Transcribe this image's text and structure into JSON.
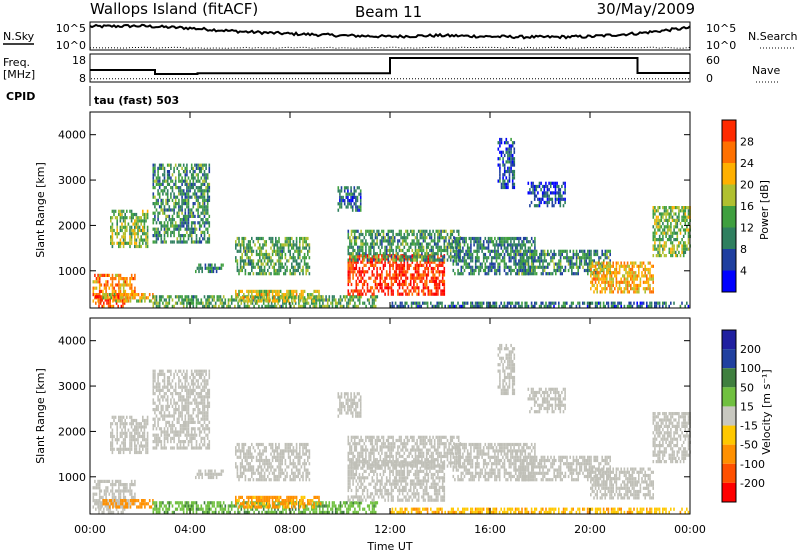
{
  "header": {
    "title": "Wallops Island (fitACF)",
    "beam": "Beam 11",
    "date": "30/May/2009"
  },
  "panel_labels": {
    "nsky": "N.Sky",
    "nsearch": "N.Search",
    "freq": "Freq.",
    "freq_unit": "[MHz]",
    "nave": "Nave",
    "cpid": "CPID",
    "program": "tau (fast) 503"
  },
  "colors": {
    "power_scale": [
      "#0000ff",
      "#1f3f9f",
      "#2f7f5f",
      "#3f9f3f",
      "#b0c030",
      "#ffb000",
      "#ff7000",
      "#ff2a00",
      "#ff0000"
    ],
    "velocity_scale": [
      "#2020a0",
      "#20409f",
      "#3f7f3f",
      "#70c040",
      "#c8c8c0",
      "#ffc800",
      "#ff9000",
      "#ff5000",
      "#ff0000"
    ],
    "ground_scatter": "#c0c0b8"
  },
  "chart_data": [
    {
      "type": "line",
      "name": "noise-panel",
      "left_axis": {
        "label": "N.Sky",
        "ticks": [
          "10^5",
          "10^0"
        ]
      },
      "right_axis": {
        "label": "N.Search",
        "ticks": [
          "10^5",
          "10^0"
        ]
      },
      "x": [
        0,
        2,
        4,
        6,
        8,
        10,
        12,
        14,
        16,
        18,
        20,
        22,
        24
      ],
      "nsky_log": [
        4.2,
        4.3,
        3.9,
        3.3,
        2.9,
        2.6,
        2.4,
        2.6,
        2.4,
        2.3,
        2.4,
        3.0,
        4.0
      ],
      "ylim": [
        0,
        5
      ]
    },
    {
      "type": "line",
      "name": "freq-panel",
      "left_axis": {
        "label": "Freq. [MHz]",
        "ticks": [
          "18",
          "8"
        ]
      },
      "right_axis": {
        "label": "Nave",
        "ticks": [
          "60",
          "0"
        ]
      },
      "freq_steps": [
        {
          "t0": 0,
          "t1": 2.6,
          "value": 12
        },
        {
          "t0": 2.6,
          "t1": 4.3,
          "value": 10
        },
        {
          "t0": 4.3,
          "t1": 12.0,
          "value": 10.4
        },
        {
          "t0": 12.0,
          "t1": 21.9,
          "value": 18
        },
        {
          "t0": 21.9,
          "t1": 24,
          "value": 10.5
        }
      ],
      "nave": 7,
      "ylim": [
        6,
        20
      ]
    },
    {
      "type": "heatmap",
      "name": "power-panel",
      "ylabel": "Slant Range [km]",
      "yticks": [
        "1000",
        "2000",
        "3000",
        "4000"
      ],
      "ylim": [
        180,
        4500
      ],
      "colorbar_label": "Power [dB]",
      "colorbar_ticks": [
        "4",
        "8",
        "12",
        "16",
        "20",
        "24",
        "28"
      ],
      "zlim": [
        0,
        32
      ]
    },
    {
      "type": "heatmap",
      "name": "velocity-panel",
      "ylabel": "Slant Range [km]",
      "yticks": [
        "1000",
        "2000",
        "3000",
        "4000"
      ],
      "ylim": [
        180,
        4500
      ],
      "colorbar_label": "Velocity [m s⁻¹]",
      "colorbar_ticks": [
        "200",
        "100",
        "50",
        "15",
        "-15",
        "-50",
        "-100",
        "-200"
      ],
      "xlabel": "Time UT",
      "xticks": [
        "00:00",
        "04:00",
        "08:00",
        "12:00",
        "16:00",
        "20:00",
        "00:00"
      ],
      "xlim": [
        0,
        24
      ]
    }
  ],
  "scatter_regions": [
    {
      "t0": 0.1,
      "t1": 1.8,
      "r0": 300,
      "r1": 900,
      "p": 22,
      "v": 0,
      "gs": true
    },
    {
      "t0": 0.2,
      "t1": 1.4,
      "r0": 180,
      "r1": 450,
      "p": 26,
      "v": -5,
      "gs": true
    },
    {
      "t0": 0.5,
      "t1": 2.6,
      "r0": 300,
      "r1": 450,
      "p": 18,
      "v": -80,
      "gs": false
    },
    {
      "t0": 0.8,
      "t1": 2.3,
      "r0": 1500,
      "r1": 2300,
      "p": 14,
      "v": 0,
      "gs": true
    },
    {
      "t0": 2.5,
      "t1": 4.8,
      "r0": 1600,
      "r1": 3300,
      "p": 10,
      "v": 0,
      "gs": true
    },
    {
      "t0": 4.2,
      "t1": 5.3,
      "r0": 950,
      "r1": 1150,
      "p": 9,
      "v": 0,
      "gs": true
    },
    {
      "t0": 2.5,
      "t1": 11.5,
      "r0": 180,
      "r1": 420,
      "p": 12,
      "v": 40,
      "gs": false
    },
    {
      "t0": 5.8,
      "t1": 9.2,
      "r0": 300,
      "r1": 520,
      "p": 17,
      "v": -60,
      "gs": false
    },
    {
      "t0": 5.8,
      "t1": 8.8,
      "r0": 900,
      "r1": 1700,
      "p": 12,
      "v": 0,
      "gs": true
    },
    {
      "t0": 10.3,
      "t1": 14.2,
      "r0": 450,
      "r1": 1300,
      "p": 27,
      "v": 0,
      "gs": true
    },
    {
      "t0": 10.3,
      "t1": 14.8,
      "r0": 1200,
      "r1": 1900,
      "p": 11,
      "v": 0,
      "gs": true
    },
    {
      "t0": 9.9,
      "t1": 10.8,
      "r0": 2300,
      "r1": 2800,
      "p": 7,
      "v": 0,
      "gs": true
    },
    {
      "t0": 14.5,
      "t1": 17.8,
      "r0": 900,
      "r1": 1700,
      "p": 9,
      "v": 0,
      "gs": true
    },
    {
      "t0": 16.3,
      "t1": 17.0,
      "r0": 2800,
      "r1": 3900,
      "p": 6,
      "v": 0,
      "gs": true
    },
    {
      "t0": 17.5,
      "t1": 19.0,
      "r0": 2400,
      "r1": 2900,
      "p": 5,
      "v": 0,
      "gs": true
    },
    {
      "t0": 17.0,
      "t1": 20.8,
      "r0": 900,
      "r1": 1400,
      "p": 10,
      "v": 0,
      "gs": true
    },
    {
      "t0": 20.0,
      "t1": 22.5,
      "r0": 500,
      "r1": 1200,
      "p": 20,
      "v": 0,
      "gs": true
    },
    {
      "t0": 22.5,
      "t1": 24,
      "r0": 1300,
      "r1": 2400,
      "p": 14,
      "v": 0,
      "gs": true
    },
    {
      "t0": 12.0,
      "t1": 24,
      "r0": 180,
      "r1": 320,
      "p": 8,
      "v": -40,
      "gs": false
    }
  ]
}
